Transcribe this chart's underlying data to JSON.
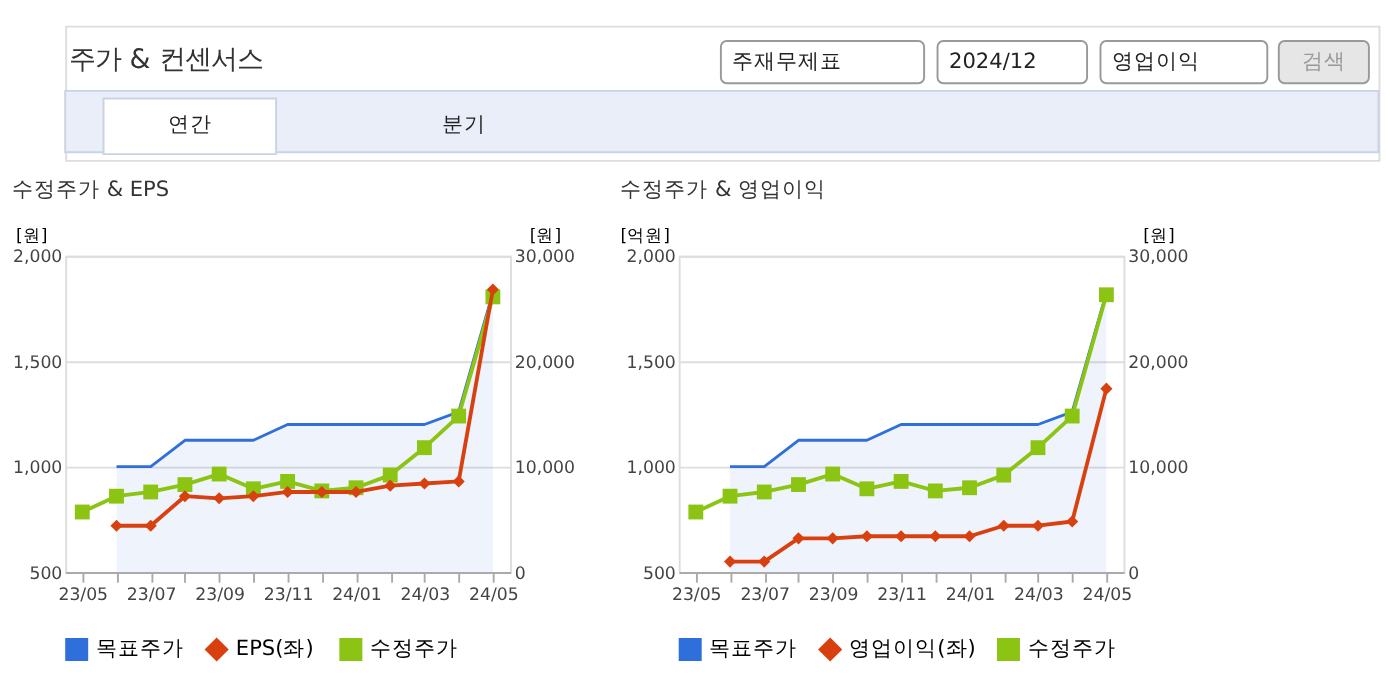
{
  "chart_data": [
    {
      "type": "line",
      "title": "수정주가 & EPS",
      "annotations": [
        "주가 & 컨센서스",
        "주재무제표",
        "2024/12",
        "영업이익",
        "검색",
        "연간",
        "분기"
      ],
      "categories": [
        "23/05",
        null,
        "23/07",
        null,
        "23/09",
        null,
        "23/11",
        null,
        "24/01",
        null,
        "24/03",
        null,
        "24/05"
      ],
      "ylabel": "[원]",
      "y2label": "[원]",
      "ylim": [
        500,
        2000
      ],
      "yticks": [
        500,
        {
          "value": 1000,
          "label": "1,000"
        },
        {
          "value": 1500,
          "label": "1,500"
        },
        {
          "value": 2000,
          "label": "2,000"
        }
      ],
      "y2lim": [
        0,
        30000
      ],
      "y2ticks": [
        0,
        {
          "value": 10000,
          "label": "10,000"
        },
        {
          "value": 20000,
          "label": "20,000"
        },
        {
          "value": 30000,
          "label": "30,000"
        }
      ],
      "grid": "y",
      "legend": "bottom",
      "series": [
        {
          "name": "목표주가",
          "type": "area",
          "axis": "y2",
          "marker": "none",
          "color": "#2f6fdc",
          "values": [
            null,
            10000,
            10000,
            12500,
            12500,
            12500,
            14000,
            14000,
            14000,
            14000,
            14000,
            15200,
            26500
          ]
        },
        {
          "name": "EPS(좌)",
          "marker": "diamond",
          "color": "#d9400f",
          "values": [
            null,
            720,
            720,
            860,
            850,
            860,
            880,
            880,
            880,
            910,
            920,
            930,
            1840
          ]
        },
        {
          "name": "수정주가",
          "axis": "y2",
          "marker": "square",
          "color": "#8cc414",
          "values": [
            5700,
            7200,
            7600,
            8300,
            9300,
            7900,
            8600,
            7700,
            8000,
            9200,
            11800,
            14800,
            26100
          ]
        }
      ]
    },
    {
      "type": "line",
      "title": "수정주가 & 영업이익",
      "categories": [
        "23/05",
        null,
        "23/07",
        null,
        "23/09",
        null,
        "23/11",
        null,
        "24/01",
        null,
        "24/03",
        null,
        "24/05"
      ],
      "ylabel": "[억원]",
      "y2label": "[원]",
      "ylim": [
        500,
        2000
      ],
      "yticks": [
        500,
        {
          "value": 1000,
          "label": "1,000"
        },
        {
          "value": 1500,
          "label": "1,500"
        },
        {
          "value": 2000,
          "label": "2,000"
        }
      ],
      "y2lim": [
        0,
        30000
      ],
      "y2ticks": [
        0,
        {
          "value": 10000,
          "label": "10,000"
        },
        {
          "value": 20000,
          "label": "20,000"
        },
        {
          "value": 30000,
          "label": "30,000"
        }
      ],
      "grid": "y",
      "legend": "bottom",
      "series": [
        {
          "name": "목표주가",
          "type": "area",
          "axis": "y2",
          "marker": "none",
          "color": "#2f6fdc",
          "values": [
            null,
            10000,
            10000,
            12500,
            12500,
            12500,
            14000,
            14000,
            14000,
            14000,
            14000,
            15200,
            26500
          ]
        },
        {
          "name": "영업이익(좌)",
          "marker": "diamond",
          "color": "#d9400f",
          "values": [
            null,
            550,
            550,
            660,
            660,
            670,
            670,
            670,
            670,
            720,
            720,
            740,
            1370
          ]
        },
        {
          "name": "수정주가",
          "axis": "y2",
          "marker": "square",
          "color": "#8cc414",
          "values": [
            5700,
            7200,
            7600,
            8300,
            9300,
            7900,
            8600,
            7700,
            8000,
            9200,
            11800,
            14800,
            26300
          ]
        }
      ]
    }
  ]
}
